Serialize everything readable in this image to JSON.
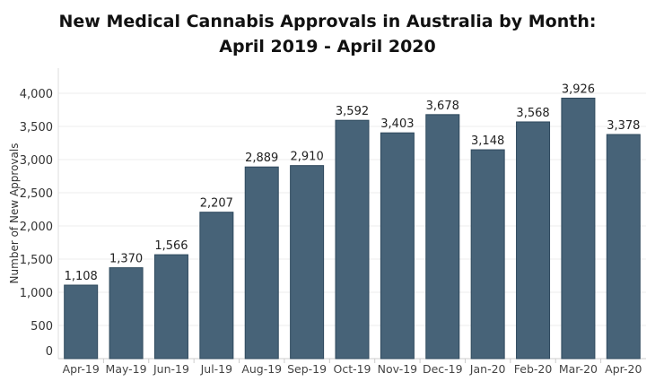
{
  "chart_data": {
    "type": "bar",
    "title": [
      "New Medical Cannabis Approvals in Australia by Month:",
      "April 2019 - April 2020"
    ],
    "xlabel": "",
    "ylabel": "Number of New Approvals",
    "ylim": [
      0,
      4300
    ],
    "yticks": [
      0,
      500,
      1000,
      1500,
      2000,
      2500,
      3000,
      3500,
      4000
    ],
    "ytick_labels": [
      "0",
      "500",
      "1,000",
      "1,500",
      "2,000",
      "2,500",
      "3,000",
      "3,500",
      "4,000"
    ],
    "grid": true,
    "categories": [
      "Apr-19",
      "May-19",
      "Jun-19",
      "Jul-19",
      "Aug-19",
      "Sep-19",
      "Oct-19",
      "Nov-19",
      "Dec-19",
      "Jan-20",
      "Feb-20",
      "Mar-20",
      "Apr-20"
    ],
    "values": [
      1108,
      1370,
      1566,
      2207,
      2889,
      2910,
      3592,
      3403,
      3678,
      3148,
      3568,
      3926,
      3378
    ],
    "value_labels": [
      "1,108",
      "1,370",
      "1,566",
      "2,207",
      "2,889",
      "2,910",
      "3,592",
      "3,403",
      "3,678",
      "3,148",
      "3,568",
      "3,926",
      "3,378"
    ],
    "bar_color": "#476378",
    "bar_border_color": "#2f4a5e"
  }
}
